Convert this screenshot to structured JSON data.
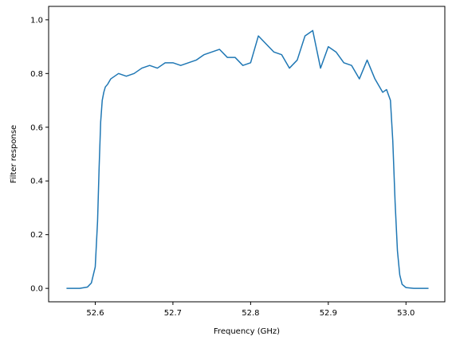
{
  "chart_data": {
    "type": "line",
    "xlabel": "Frequency (GHz)",
    "ylabel": "Filter response",
    "xlim": [
      52.54,
      53.05
    ],
    "ylim": [
      -0.05,
      1.05
    ],
    "xticks": [
      52.6,
      52.7,
      52.8,
      52.9,
      53.0
    ],
    "xtick_labels": [
      "52.6",
      "52.7",
      "52.8",
      "52.9",
      "53.0"
    ],
    "yticks": [
      0.0,
      0.2,
      0.4,
      0.6,
      0.8,
      1.0
    ],
    "ytick_labels": [
      "0.0",
      "0.2",
      "0.4",
      "0.6",
      "0.8",
      "1.0"
    ],
    "grid": false,
    "series": [
      {
        "color": "#1f77b4",
        "x": [
          52.563,
          52.58,
          52.59,
          52.595,
          52.6,
          52.603,
          52.605,
          52.607,
          52.609,
          52.611,
          52.613,
          52.616,
          52.62,
          52.625,
          52.63,
          52.64,
          52.65,
          52.66,
          52.67,
          52.68,
          52.69,
          52.7,
          52.71,
          52.72,
          52.73,
          52.74,
          52.75,
          52.76,
          52.77,
          52.78,
          52.79,
          52.8,
          52.81,
          52.82,
          52.83,
          52.84,
          52.85,
          52.86,
          52.87,
          52.88,
          52.89,
          52.9,
          52.91,
          52.92,
          52.93,
          52.94,
          52.95,
          52.96,
          52.97,
          52.975,
          52.98,
          52.983,
          52.986,
          52.989,
          52.992,
          52.995,
          53.0,
          53.01,
          53.029
        ],
        "y": [
          0.0,
          0.0,
          0.005,
          0.02,
          0.08,
          0.25,
          0.45,
          0.62,
          0.7,
          0.73,
          0.75,
          0.76,
          0.78,
          0.79,
          0.8,
          0.79,
          0.8,
          0.82,
          0.83,
          0.82,
          0.84,
          0.84,
          0.83,
          0.84,
          0.85,
          0.87,
          0.88,
          0.89,
          0.86,
          0.86,
          0.83,
          0.84,
          0.94,
          0.91,
          0.88,
          0.87,
          0.82,
          0.85,
          0.94,
          0.96,
          0.82,
          0.9,
          0.88,
          0.84,
          0.83,
          0.78,
          0.85,
          0.78,
          0.73,
          0.74,
          0.7,
          0.55,
          0.32,
          0.14,
          0.05,
          0.015,
          0.003,
          0.0,
          0.0
        ]
      }
    ]
  }
}
